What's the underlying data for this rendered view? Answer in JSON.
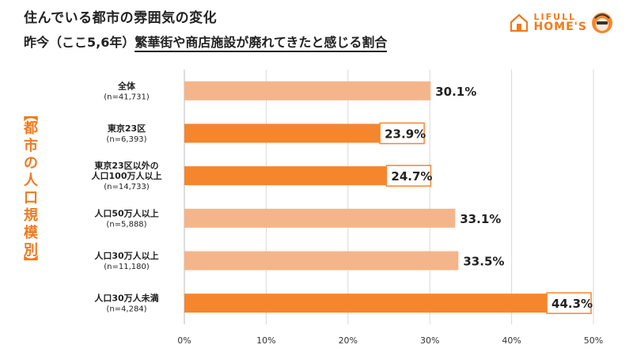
{
  "header": {
    "title": "住んでいる都市の雰囲気の変化",
    "subtitle_prefix": "昨今（ここ5,6年）",
    "subtitle_highlight": "繁華街や商店施設が廃れてきたと感じる割合"
  },
  "logo": {
    "line1": "LIFULL",
    "line2": "HOME'S",
    "icon": "house-icon",
    "mascot": "mascot-icon"
  },
  "side_label": "【都市の人口規模別】",
  "colors": {
    "light_bar": "#f5b58a",
    "dark_bar": "#f5862e",
    "accent": "#f07a1f",
    "highlight_border": "#f5862e"
  },
  "chart_data": {
    "type": "bar",
    "orientation": "horizontal",
    "categories": [
      {
        "label": [
          "全体"
        ],
        "n": "(n=41,731)",
        "value": 30.1,
        "value_label": "30.1%",
        "style": "light",
        "boxed": false
      },
      {
        "label": [
          "東京23区"
        ],
        "n": "(n=6,393)",
        "value": 23.9,
        "value_label": "23.9%",
        "style": "dark",
        "boxed": true
      },
      {
        "label": [
          "東京23区以外の",
          "人口100万人以上"
        ],
        "n": "(n=14,733)",
        "value": 24.7,
        "value_label": "24.7%",
        "style": "dark",
        "boxed": true
      },
      {
        "label": [
          "人口50万人以上"
        ],
        "n": "(n=5,888)",
        "value": 33.1,
        "value_label": "33.1%",
        "style": "light",
        "boxed": false
      },
      {
        "label": [
          "人口30万人以上"
        ],
        "n": "(n=11,180)",
        "value": 33.5,
        "value_label": "33.5%",
        "style": "light",
        "boxed": false
      },
      {
        "label": [
          "人口30万人未満"
        ],
        "n": "(n=4,284)",
        "value": 44.3,
        "value_label": "44.3%",
        "style": "dark",
        "boxed": true
      }
    ],
    "xlim": [
      0,
      50
    ],
    "xticks": [
      "0%",
      "10%",
      "20%",
      "30%",
      "40%",
      "50%"
    ],
    "grid": true
  }
}
